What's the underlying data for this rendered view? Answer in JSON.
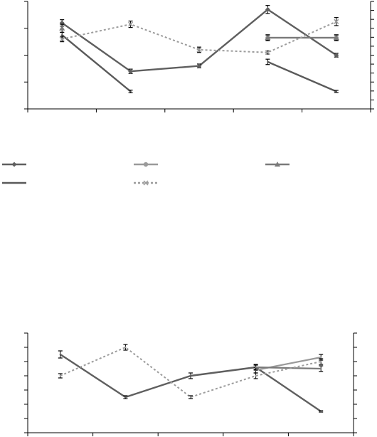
{
  "charts": [
    {
      "type": "line",
      "categories": [
        "",
        "",
        "",
        "",
        ""
      ],
      "ylim": [
        0,
        4
      ],
      "yticks": [
        0,
        1,
        2,
        3,
        4
      ],
      "right_ticks": 12,
      "series": [
        {
          "key": "s1",
          "color": "#5f5f5f",
          "width": 2.4,
          "dash": "",
          "marker": "diamond",
          "values": [
            3.2,
            1.4,
            1.6,
            3.7,
            2.0
          ],
          "err": [
            0.12,
            0.08,
            0.07,
            0.15,
            0.07
          ]
        },
        {
          "key": "s2",
          "color": "#9a9a9a",
          "width": 2.2,
          "dash": "",
          "marker": "circle",
          "values": [
            null,
            null,
            null,
            2.65,
            2.65
          ],
          "err": [
            0,
            0,
            0,
            0.11,
            0.11
          ]
        },
        {
          "key": "s3",
          "color": "#7a7a7a",
          "width": 2.2,
          "dash": "",
          "marker": "triangle",
          "values": [
            3.0,
            null,
            null,
            2.65,
            2.65
          ],
          "err": [
            0.15,
            0,
            0,
            0.1,
            0.1
          ]
        },
        {
          "key": "s4",
          "color": "#5a5a5a",
          "width": 2.4,
          "dash": "",
          "marker": "dash",
          "values": [
            2.75,
            0.65,
            null,
            1.75,
            0.65
          ],
          "err": [
            0.1,
            0.05,
            0,
            0.1,
            0.04
          ]
        },
        {
          "key": "s5",
          "color": "#9c9c9c",
          "width": 2.0,
          "dash": "3,3",
          "marker": "cross",
          "values": [
            2.6,
            3.15,
            2.2,
            2.1,
            3.25
          ],
          "err": [
            0.1,
            0.12,
            0.1,
            0.06,
            0.15
          ]
        }
      ]
    },
    {
      "type": "line",
      "categories": [
        "",
        "",
        "",
        "",
        ""
      ],
      "ylim": [
        0,
        7
      ],
      "yticks": [
        0,
        1,
        2,
        3,
        4,
        5,
        6,
        7
      ],
      "right_ticks": 7,
      "series": [
        {
          "key": "s1",
          "color": "#5f5f5f",
          "width": 2.4,
          "dash": "",
          "marker": "none",
          "values": [
            5.5,
            2.5,
            4.0,
            4.6,
            1.5
          ],
          "err": [
            0.25,
            0.1,
            0.2,
            0.15,
            0.05
          ]
        },
        {
          "key": "s2",
          "color": "#9a9a9a",
          "width": 2.2,
          "dash": "",
          "marker": "none",
          "values": [
            null,
            null,
            null,
            4.4,
            5.3
          ],
          "err": [
            0,
            0,
            0,
            0.2,
            0.2
          ]
        },
        {
          "key": "s3",
          "color": "#7a7a7a",
          "width": 2.2,
          "dash": "",
          "marker": "none",
          "values": [
            null,
            null,
            null,
            4.6,
            4.5
          ],
          "err": [
            0,
            0,
            0,
            0.2,
            0.2
          ]
        },
        {
          "key": "s5",
          "color": "#9c9c9c",
          "width": 2.0,
          "dash": "3,3",
          "marker": "none",
          "values": [
            4.0,
            6.0,
            2.5,
            4.0,
            5.0
          ],
          "err": [
            0.15,
            0.2,
            0.1,
            0.2,
            0.2
          ]
        }
      ]
    }
  ],
  "legend": [
    {
      "key": "s1",
      "name": "",
      "color": "#5f5f5f",
      "dash": "",
      "marker": "diamond"
    },
    {
      "key": "s2",
      "name": "",
      "color": "#9a9a9a",
      "dash": "",
      "marker": "circle"
    },
    {
      "key": "s3",
      "name": "",
      "color": "#7a7a7a",
      "dash": "",
      "marker": "triangle"
    },
    {
      "key": "s4",
      "name": "",
      "color": "#5a5a5a",
      "dash": "",
      "marker": "none"
    },
    {
      "key": "s5",
      "name": "",
      "color": "#9c9c9c",
      "dash": "3,3",
      "marker": "cross"
    }
  ]
}
